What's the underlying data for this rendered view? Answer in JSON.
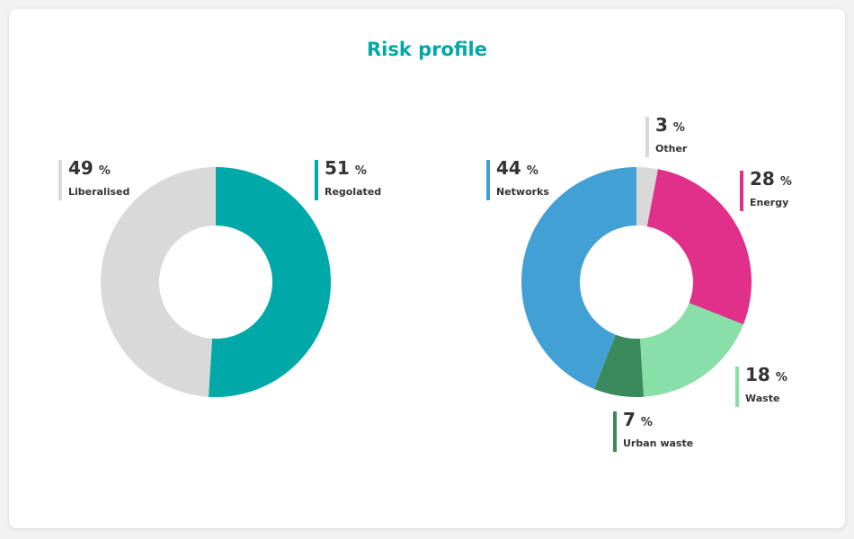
{
  "title": "Risk profile",
  "chart_data": [
    {
      "type": "pie",
      "unit": "%",
      "categories": [
        "Regolated",
        "Liberalised"
      ],
      "values": [
        51,
        49
      ],
      "colors": [
        "#00a8a8",
        "#d9d9d9"
      ]
    },
    {
      "type": "pie",
      "unit": "%",
      "categories": [
        "Other",
        "Energy",
        "Waste",
        "Urban waste",
        "Networks"
      ],
      "values": [
        3,
        28,
        18,
        7,
        44
      ],
      "colors": [
        "#d9d9d9",
        "#e0308a",
        "#88e0a8",
        "#3b8a5c",
        "#42a0d4"
      ]
    }
  ]
}
